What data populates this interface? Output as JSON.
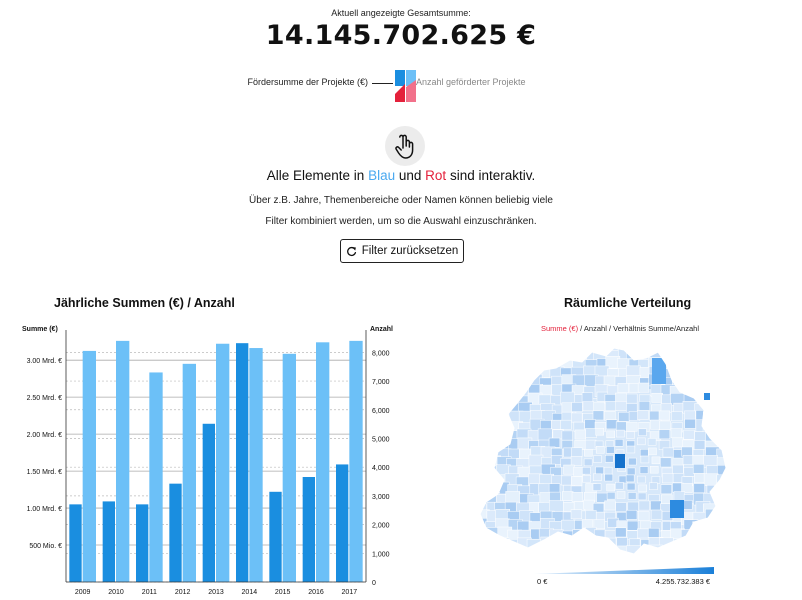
{
  "header": {
    "label": "Aktuell angezeigte Gesamtsumme:",
    "total": "14.145.702.625 €"
  },
  "legend": {
    "left_label": "Fördersumme der Projekte (€)",
    "right_label": "Anzahl geförderter Projekte"
  },
  "intro": {
    "prefix": "Alle Elemente in",
    "blue_word": "Blau",
    "middle": "und",
    "red_word": "Rot",
    "suffix": "sind interaktiv.",
    "line1": "Über z.B. Jahre, Themenbereiche oder Namen können beliebig viele",
    "line2": "Filter kombiniert werden, um so die Auswahl einzuschränken."
  },
  "reset_button": {
    "label": "Filter zurücksetzen"
  },
  "bar_section": {
    "title": "Jährliche Summen (€) / Anzahl"
  },
  "map_section": {
    "title": "Räumliche Verteilung",
    "legend_active": "Summe (€)",
    "legend_rest": " / Anzahl / Verhältnis Summe/Anzahl",
    "scale_min": "0 €",
    "scale_max": "4.255.732.383 €"
  },
  "colors": {
    "sum_bar": "#1a8ee0",
    "count_bar": "#6cc0f7",
    "red_accent": "#e4213b",
    "blue_accent": "#4aa9f0",
    "map_light": "#dbeafb",
    "map_dark": "#1a7fd8"
  },
  "icons": {
    "hand": "hand-pointer-icon",
    "reset": "reset-arrow-icon",
    "legend": "bar-legend-icon"
  },
  "chart_data": {
    "type": "bar",
    "categories": [
      "2009",
      "2010",
      "2011",
      "2012",
      "2013",
      "2014",
      "2015",
      "2016",
      "2017"
    ],
    "series": [
      {
        "name": "Summe (€)",
        "axis": "left",
        "values": [
          1050000000,
          1090000000,
          1050000000,
          1330000000,
          2140000000,
          3230000000,
          1220000000,
          1420000000,
          1590000000
        ]
      },
      {
        "name": "Anzahl",
        "axis": "right",
        "values": [
          8050,
          8400,
          7300,
          7600,
          8300,
          8150,
          7950,
          8350,
          8400
        ]
      }
    ],
    "left_axis": {
      "label": "Summe (€)",
      "ylim": [
        0,
        3300000000
      ],
      "ticks": [
        500000000,
        1000000000,
        1500000000,
        2000000000,
        2500000000,
        3000000000
      ],
      "tick_labels": [
        "500 Mio. €",
        "1.00 Mrd. €",
        "1.50 Mrd. €",
        "2.00 Mrd. €",
        "2.50 Mrd. €",
        "3.00 Mrd. €"
      ]
    },
    "right_axis": {
      "label": "Anzahl",
      "ylim": [
        0,
        8500
      ],
      "ticks": [
        0,
        1000,
        2000,
        3000,
        4000,
        5000,
        6000,
        7000,
        8000
      ],
      "tick_labels": [
        "0",
        "1,000",
        "2,000",
        "3,000",
        "4,000",
        "5,000",
        "6,000",
        "7,000",
        "8,000"
      ]
    },
    "grid": true
  }
}
